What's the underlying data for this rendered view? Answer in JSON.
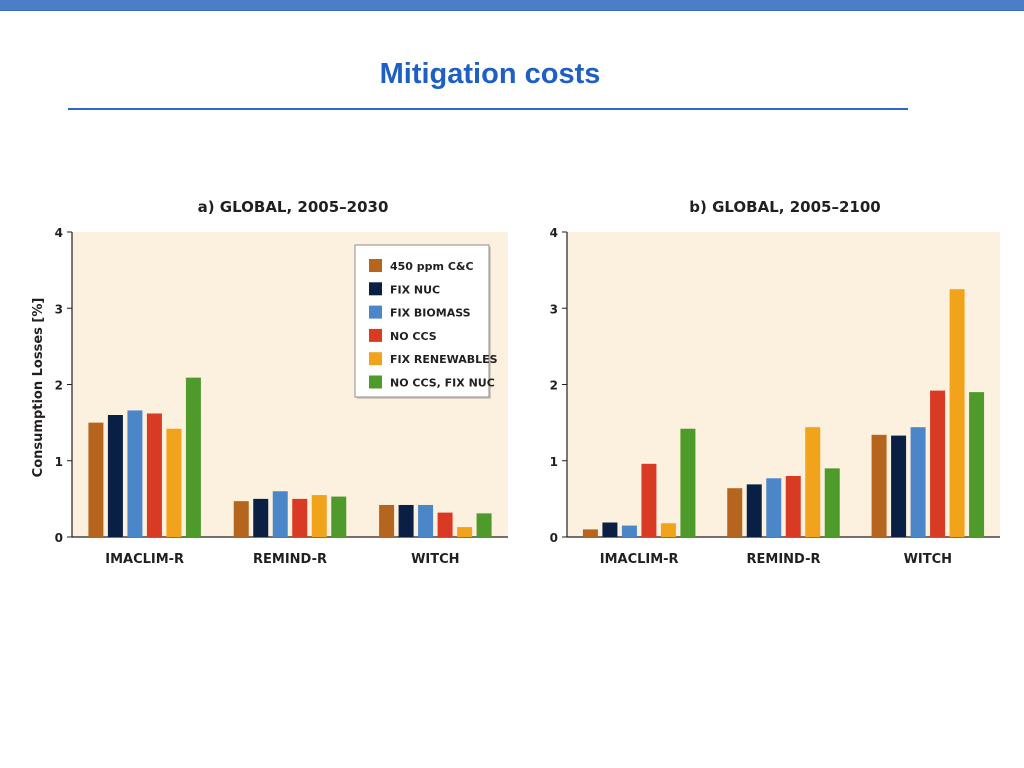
{
  "slide": {
    "title": "Mitigation costs"
  },
  "colors": {
    "top_bar": "#4a7fc8",
    "title": "#1f5fc4",
    "plot_background": "#fcf1df",
    "series": [
      "#b5651d",
      "#0a1f44",
      "#4a86c8",
      "#d93a23",
      "#f0a31b",
      "#4e9a2a"
    ]
  },
  "chart_data": [
    {
      "type": "bar",
      "title": "a) GLOBAL, 2005–2030",
      "ylabel": "Consumption Losses [%]",
      "xlabel": "",
      "ylim": [
        0,
        4
      ],
      "yticks": [
        0,
        1,
        2,
        3,
        4
      ],
      "grid": false,
      "legend_position": "top-right",
      "categories": [
        "IMACLIM-R",
        "REMIND-R",
        "WITCH"
      ],
      "series": [
        {
          "name": "450 ppm C&C",
          "values": [
            1.5,
            0.47,
            0.42
          ]
        },
        {
          "name": "FIX NUC",
          "values": [
            1.6,
            0.5,
            0.42
          ]
        },
        {
          "name": "FIX BIOMASS",
          "values": [
            1.66,
            0.6,
            0.42
          ]
        },
        {
          "name": "NO CCS",
          "values": [
            1.62,
            0.5,
            0.32
          ]
        },
        {
          "name": "FIX RENEWABLES",
          "values": [
            1.42,
            0.55,
            0.13
          ]
        },
        {
          "name": "NO CCS, FIX NUC",
          "values": [
            2.09,
            0.53,
            0.31
          ]
        }
      ]
    },
    {
      "type": "bar",
      "title": "b) GLOBAL, 2005–2100",
      "ylabel": "",
      "xlabel": "",
      "ylim": [
        0,
        4
      ],
      "yticks": [
        0,
        1,
        2,
        3,
        4
      ],
      "grid": false,
      "categories": [
        "IMACLIM-R",
        "REMIND-R",
        "WITCH"
      ],
      "series": [
        {
          "name": "450 ppm C&C",
          "values": [
            0.1,
            0.64,
            1.34
          ]
        },
        {
          "name": "FIX NUC",
          "values": [
            0.19,
            0.69,
            1.33
          ]
        },
        {
          "name": "FIX BIOMASS",
          "values": [
            0.15,
            0.77,
            1.44
          ]
        },
        {
          "name": "NO CCS",
          "values": [
            0.96,
            0.8,
            1.92
          ]
        },
        {
          "name": "FIX RENEWABLES",
          "values": [
            0.18,
            1.44,
            3.25
          ]
        },
        {
          "name": "NO CCS, FIX NUC",
          "values": [
            1.42,
            0.9,
            1.9
          ]
        }
      ]
    }
  ]
}
